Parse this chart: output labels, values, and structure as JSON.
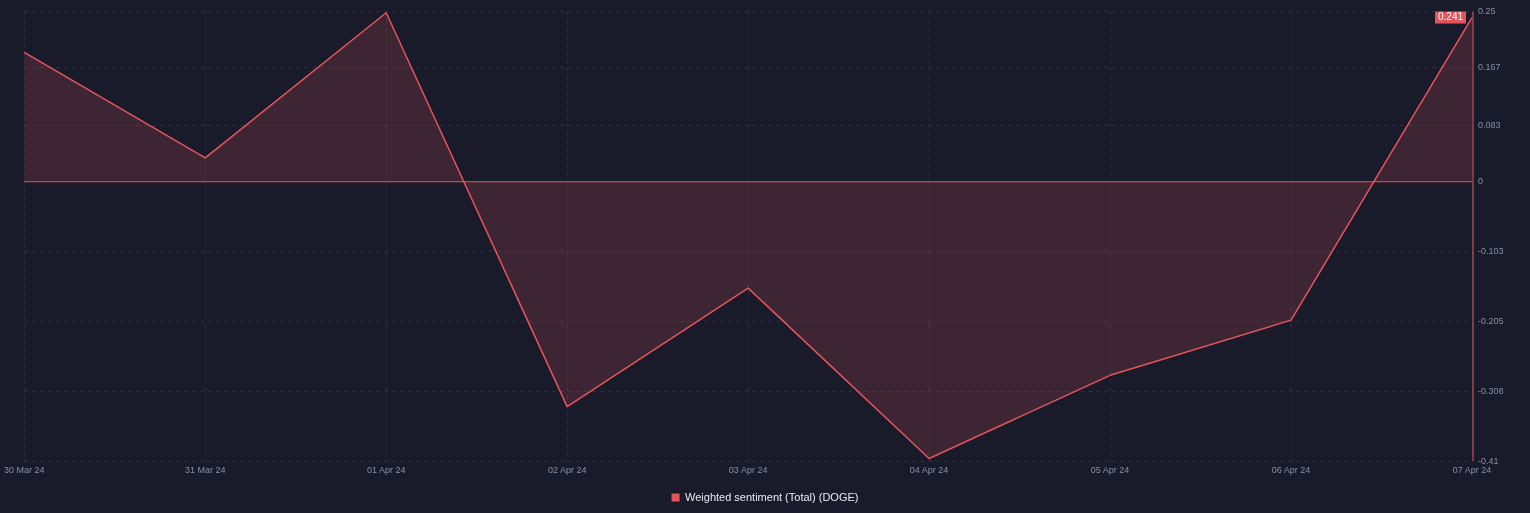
{
  "chart_data": {
    "type": "area",
    "categories": [
      "30 Mar 24",
      "31 Mar 24",
      "01 Apr 24",
      "02 Apr 24",
      "03 Apr 24",
      "04 Apr 24",
      "05 Apr 24",
      "06 Apr 24",
      "07 Apr 24"
    ],
    "series": [
      {
        "name": "Weighted sentiment (Total) (DOGE)",
        "color": "#e5545b",
        "values": [
          0.19,
          0.035,
          0.248,
          -0.33,
          -0.156,
          -0.406,
          -0.284,
          -0.203,
          0.241
        ]
      }
    ],
    "ylim": [
      -0.41,
      0.25
    ],
    "yticks": [
      0.25,
      0.167,
      0.083,
      0,
      -0.103,
      -0.205,
      -0.308,
      -0.41
    ],
    "ref_lines": [
      {
        "axis": "y",
        "value": 0,
        "color": "#e5545b"
      }
    ],
    "annotations": [
      {
        "text": "0.241",
        "x": "07 Apr 24",
        "y": 0.241
      }
    ],
    "grid": true,
    "legend": "bottom",
    "marker": "none",
    "line_style": "solid"
  }
}
